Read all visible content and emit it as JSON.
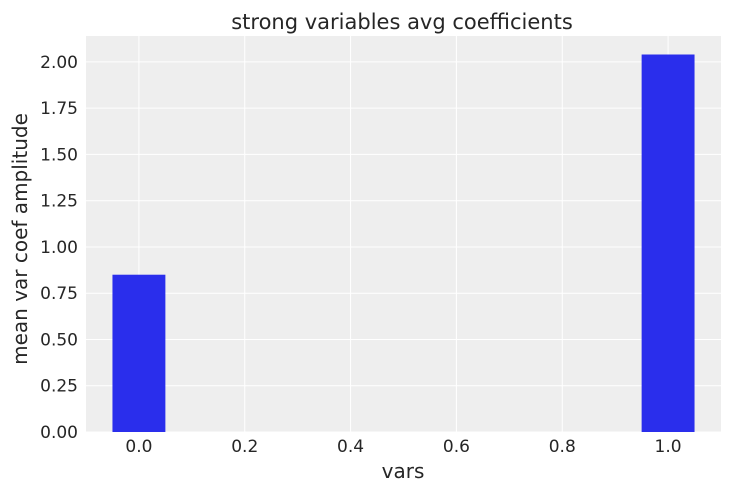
{
  "chart_data": {
    "type": "bar",
    "title": "strong variables avg coefficients",
    "xlabel": "vars",
    "ylabel": "mean var coef amplitude",
    "x": [
      0.0,
      1.0
    ],
    "values": [
      0.85,
      2.04
    ],
    "bar_width_data": 0.1,
    "xlim": [
      -0.1,
      1.1
    ],
    "ylim": [
      0.0,
      2.14
    ],
    "xticks": [
      0.0,
      0.2,
      0.4,
      0.6,
      0.8,
      1.0
    ],
    "xtick_labels": [
      "0.0",
      "0.2",
      "0.4",
      "0.6",
      "0.8",
      "1.0"
    ],
    "yticks": [
      0.0,
      0.25,
      0.5,
      0.75,
      1.0,
      1.25,
      1.5,
      1.75,
      2.0
    ],
    "ytick_labels": [
      "0.00",
      "0.25",
      "0.50",
      "0.75",
      "1.00",
      "1.25",
      "1.50",
      "1.75",
      "2.00"
    ],
    "grid": true,
    "colors": {
      "bar": "#2a2eec",
      "plot_background": "#eeeeee",
      "grid": "#ffffff",
      "text": "#262626"
    }
  }
}
